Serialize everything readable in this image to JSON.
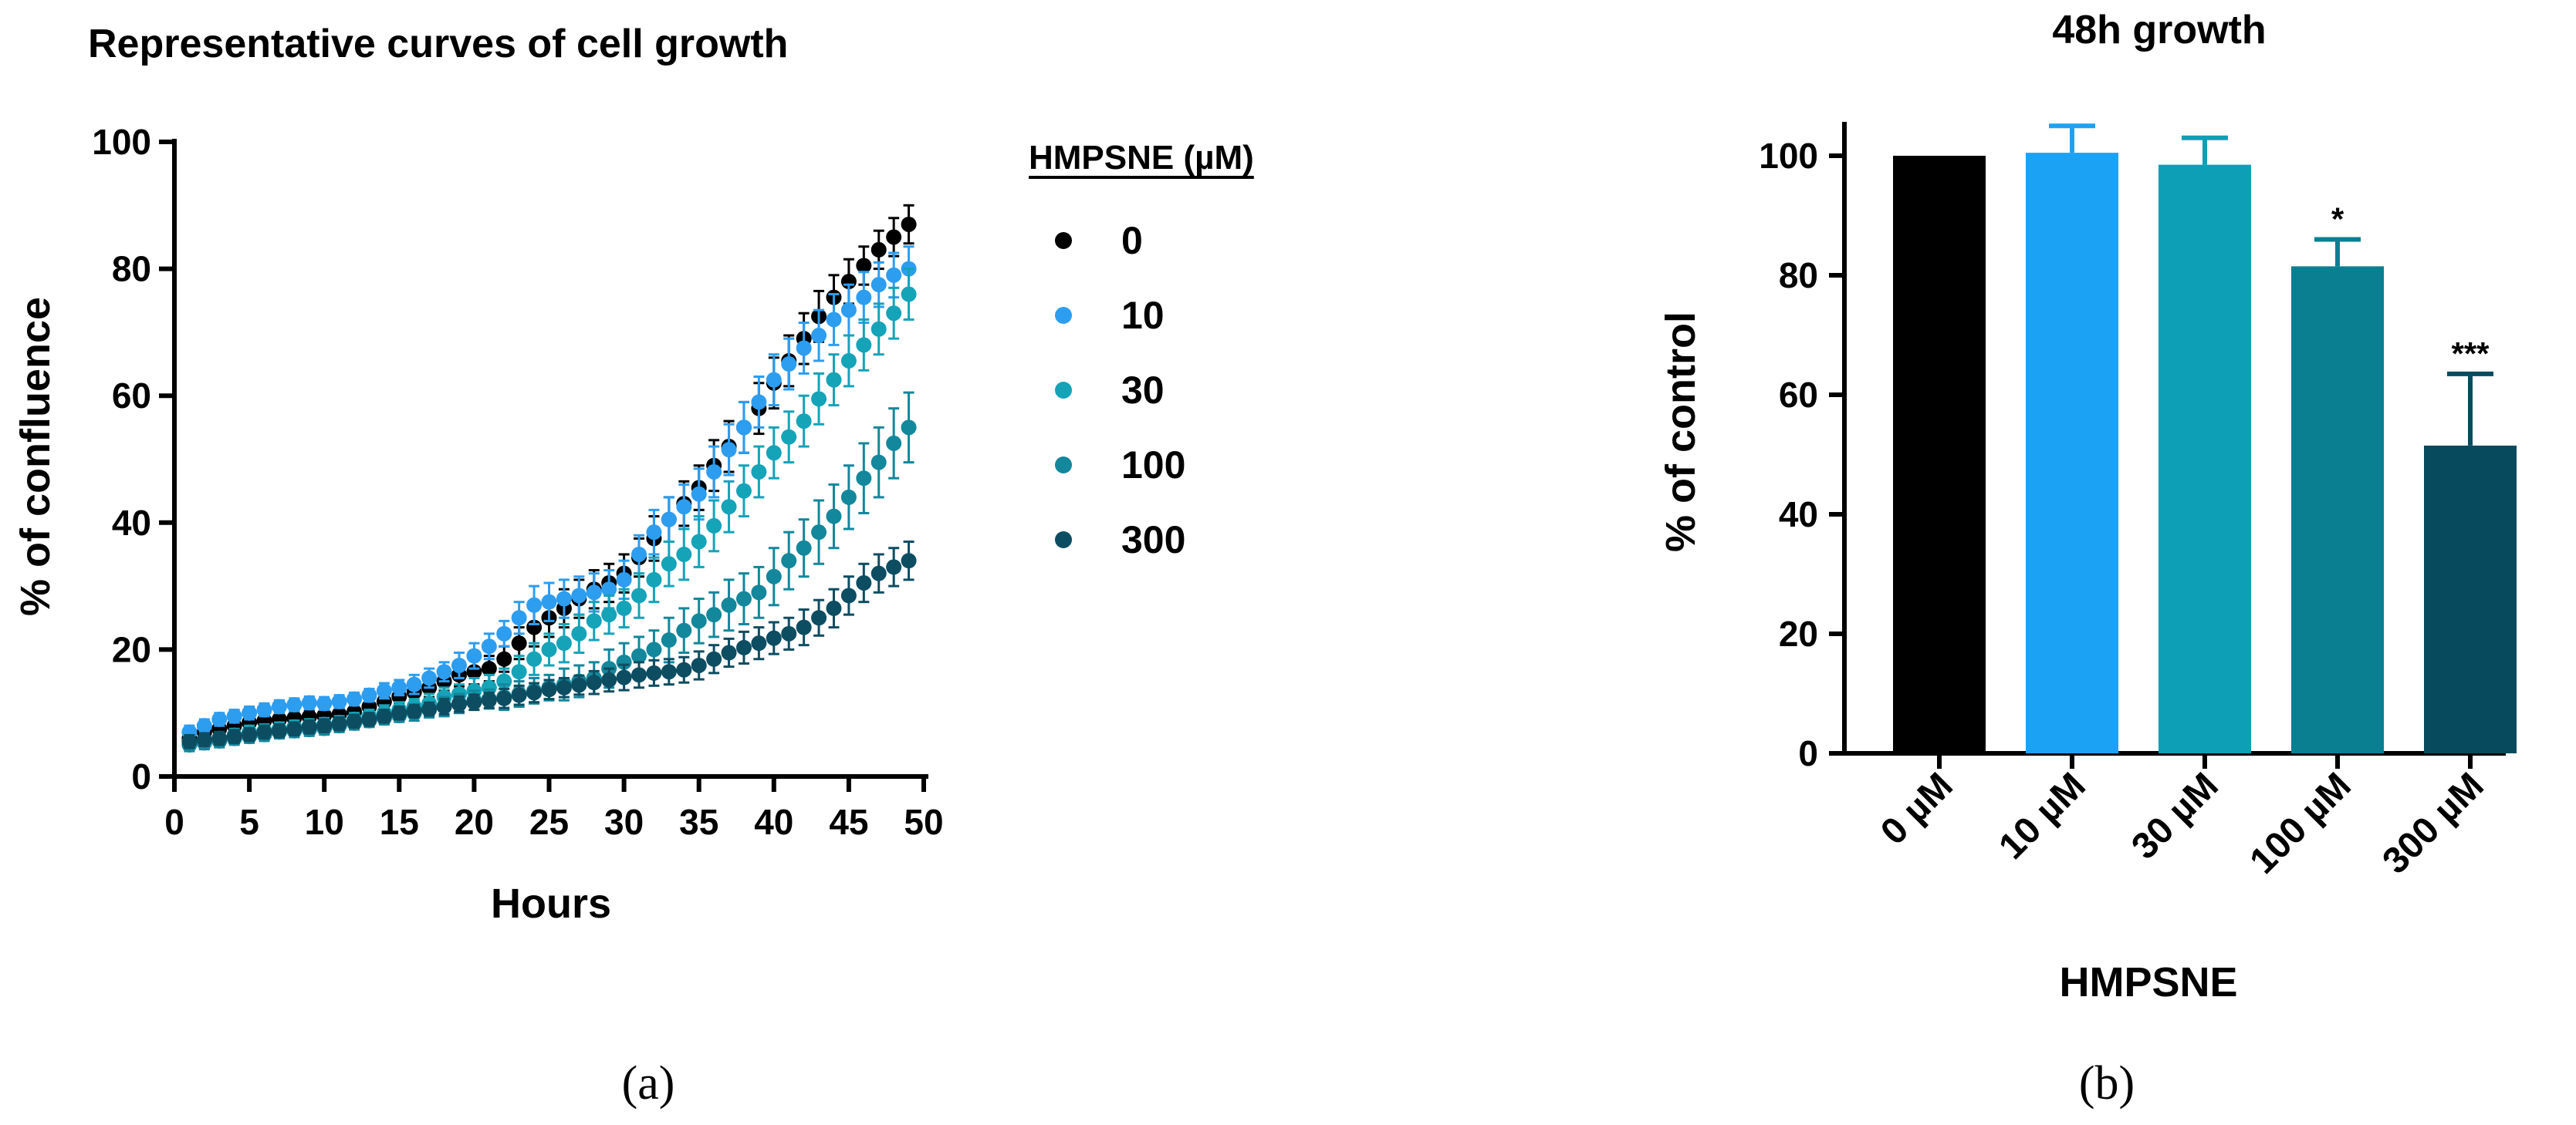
{
  "chart_data": [
    {
      "panel_label": "(a)",
      "type": "scatter",
      "title": "Representative curves of cell growth",
      "xlabel": "Hours",
      "ylabel": "% of confluence",
      "xlim": [
        0,
        50
      ],
      "ylim": [
        0,
        100
      ],
      "x_ticks": [
        "0",
        "5",
        "10",
        "15",
        "20",
        "25",
        "30",
        "35",
        "40",
        "45",
        "50"
      ],
      "y_ticks": [
        "0",
        "20",
        "40",
        "60",
        "80",
        "100"
      ],
      "legend_title": "HMPSNE (µM)",
      "legend_position": "right",
      "error_bars": true,
      "x": [
        1,
        2,
        3,
        4,
        5,
        6,
        7,
        8,
        9,
        10,
        11,
        12,
        13,
        14,
        15,
        16,
        17,
        18,
        19,
        20,
        21,
        22,
        23,
        24,
        25,
        26,
        27,
        28,
        29,
        30,
        31,
        32,
        33,
        34,
        35,
        36,
        37,
        38,
        39,
        40,
        41,
        42,
        43,
        44,
        45,
        46,
        47,
        48,
        49
      ],
      "series": [
        {
          "name": "0",
          "color": "#000000",
          "values": [
            6,
            7,
            7.5,
            8,
            8.5,
            8.8,
            9,
            9.2,
            9.4,
            9.6,
            9.8,
            10.2,
            11,
            11.8,
            12.6,
            13.3,
            14,
            15,
            16,
            16.5,
            17,
            18.5,
            21,
            23.5,
            25,
            26.5,
            28,
            29.5,
            30.5,
            32,
            34.5,
            37.5,
            40.5,
            43,
            45.5,
            49,
            52,
            55,
            58,
            62,
            65.5,
            69,
            72.5,
            75.5,
            78,
            80.5,
            83,
            85,
            87
          ],
          "errors": [
            1,
            1,
            1,
            1,
            1,
            1,
            1,
            1,
            1,
            1,
            1,
            1,
            1,
            1.2,
            1.2,
            1.5,
            1.5,
            1.5,
            1.8,
            2,
            2,
            2,
            2.5,
            3,
            3,
            3,
            3,
            3,
            3,
            3,
            3,
            3.5,
            3.5,
            3.5,
            3.5,
            4,
            4,
            4,
            4,
            4,
            4,
            4,
            4,
            3.5,
            3.5,
            3,
            3,
            3,
            3
          ]
        },
        {
          "name": "10",
          "color": "#2d9df0",
          "values": [
            7,
            8,
            9,
            9.5,
            10,
            10.5,
            11,
            11.3,
            11.6,
            11.5,
            11.8,
            12.2,
            12.8,
            13.5,
            14,
            14.5,
            15.5,
            16.5,
            17.5,
            19,
            20.5,
            22.5,
            25,
            27,
            27.5,
            28,
            28.5,
            29,
            29.5,
            31,
            35,
            38.5,
            40.5,
            42.5,
            44.5,
            48,
            51.5,
            55,
            59,
            62.5,
            65,
            67.5,
            69.5,
            72,
            73.5,
            75.5,
            77.5,
            79,
            80
          ],
          "errors": [
            1,
            1,
            1,
            1,
            1,
            1,
            1,
            1,
            1,
            1,
            1,
            1,
            1,
            1.2,
            1.2,
            1.5,
            1.5,
            1.5,
            2,
            2,
            2,
            2,
            2.5,
            3,
            3,
            3,
            3,
            3,
            3,
            3,
            3,
            3.5,
            3.5,
            3.5,
            4,
            4,
            4,
            4,
            4,
            4,
            4,
            4,
            4,
            4,
            4,
            4,
            3.5,
            3.5,
            3.5
          ]
        },
        {
          "name": "30",
          "color": "#15a3b8",
          "values": [
            5,
            5.5,
            6,
            6.5,
            7,
            7.2,
            7.5,
            7.8,
            8,
            8.2,
            8.5,
            9,
            9.5,
            10,
            10.5,
            11,
            11.5,
            12.5,
            13,
            13.5,
            14,
            15,
            16.5,
            18.5,
            20,
            21,
            22.5,
            24.5,
            25.5,
            26.5,
            28.5,
            31,
            33.5,
            35,
            37,
            39.5,
            42.5,
            45,
            48,
            51,
            53.5,
            56,
            59.5,
            62.5,
            65.5,
            68,
            70.5,
            73,
            76
          ],
          "errors": [
            1,
            1,
            1,
            1,
            1,
            1,
            1,
            1,
            1,
            1,
            1,
            1,
            1,
            1.2,
            1.2,
            1.2,
            1.5,
            1.5,
            1.5,
            2,
            2,
            2,
            2.5,
            2.5,
            2.5,
            3,
            3,
            3,
            3,
            3,
            3.5,
            3.5,
            3.5,
            4,
            4,
            4,
            4,
            4,
            4,
            4,
            4,
            4,
            4,
            4,
            4,
            4,
            4,
            4,
            4
          ]
        },
        {
          "name": "100",
          "color": "#13879b",
          "values": [
            5,
            5.3,
            5.6,
            6,
            6.3,
            6.6,
            7,
            7.2,
            7.4,
            7.6,
            8,
            8.4,
            8.8,
            9.2,
            9.6,
            10,
            10.5,
            11,
            11.5,
            12,
            12.2,
            12.5,
            13,
            13.5,
            14,
            14.5,
            15,
            15.5,
            17,
            18,
            19,
            20,
            21.5,
            23,
            24.5,
            25.5,
            27,
            28,
            29,
            31.5,
            34,
            36,
            38.5,
            41,
            44,
            47,
            49.5,
            52.5,
            55
          ],
          "errors": [
            1,
            1,
            1,
            1,
            1,
            1,
            1,
            1,
            1,
            1,
            1,
            1,
            1,
            1,
            1,
            1.2,
            1.2,
            1.5,
            1.5,
            1.5,
            1.5,
            2,
            2,
            2,
            2,
            2.5,
            2.5,
            2.5,
            3,
            3,
            3,
            3,
            3.5,
            3.5,
            3.5,
            3.5,
            4,
            4,
            4,
            4.5,
            4.5,
            4.5,
            5,
            5,
            5,
            5.5,
            5.5,
            5.5,
            5.5
          ]
        },
        {
          "name": "300",
          "color": "#0d4d61",
          "values": [
            5.5,
            5.8,
            6,
            6.3,
            6.6,
            7,
            7.2,
            7.5,
            7.8,
            8,
            8.3,
            8.7,
            9,
            9.5,
            10,
            10.3,
            10.6,
            11,
            11.4,
            11.7,
            12,
            12.3,
            12.8,
            13.2,
            13.7,
            14,
            14.4,
            14.8,
            15.2,
            15.6,
            16,
            16.3,
            16.5,
            16.8,
            17.5,
            18.5,
            19.5,
            20.3,
            21,
            21.8,
            22.5,
            23.5,
            25,
            26.5,
            28.5,
            30.5,
            32,
            33,
            34
          ],
          "errors": [
            1,
            1,
            1,
            1,
            1,
            1,
            1,
            1,
            1,
            1,
            1,
            1,
            1,
            1,
            1,
            1,
            1,
            1.2,
            1.2,
            1.2,
            1.2,
            1.5,
            1.5,
            1.5,
            1.5,
            1.5,
            1.5,
            1.8,
            1.8,
            2,
            2,
            2,
            2,
            2,
            2.2,
            2.2,
            2.2,
            2.5,
            2.5,
            2.5,
            2.5,
            2.8,
            2.8,
            3,
            3,
            3,
            3,
            3,
            3
          ]
        }
      ]
    },
    {
      "panel_label": "(b)",
      "type": "bar",
      "title": "48h growth",
      "xlabel": "HMPSNE",
      "ylabel": "% of control",
      "ylim": [
        0,
        105
      ],
      "y_ticks": [
        "0",
        "20",
        "40",
        "60",
        "80",
        "100"
      ],
      "categories": [
        "0 µM",
        "10 µM",
        "30 µM",
        "100 µM",
        "300 µM"
      ],
      "values": [
        100,
        100.5,
        98.5,
        81.5,
        51.5
      ],
      "errors": [
        0,
        4.5,
        4.5,
        4.5,
        12
      ],
      "annotations": [
        "",
        "",
        "",
        "*",
        "***"
      ],
      "colors": [
        "#000000",
        "#1ca2f4",
        "#0c9fb5",
        "#0a7f92",
        "#074a5e"
      ]
    }
  ]
}
